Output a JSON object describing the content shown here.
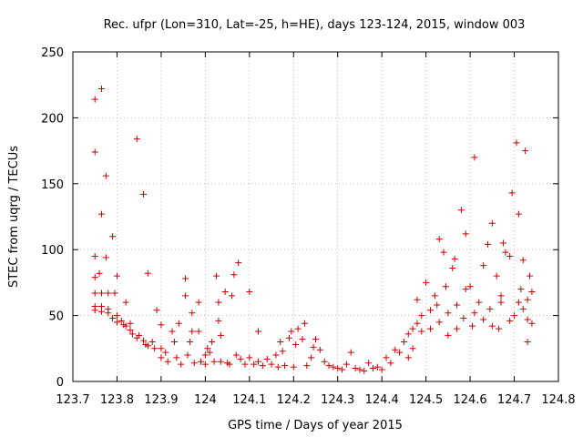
{
  "chart_data": {
    "type": "scatter",
    "title": "Rec. ufpr (Lon=310, Lat=-25, h=HE), days 123-124, 2015, window 003",
    "xlabel": "GPS time / Days of year 2015",
    "ylabel": "STEC from uqrg / TECUs",
    "xlim": [
      123.7,
      124.8
    ],
    "ylim": [
      0,
      250
    ],
    "xticks": [
      "123.7",
      "123.8",
      "123.9",
      "124",
      "124.1",
      "124.2",
      "124.3",
      "124.4",
      "124.5",
      "124.6",
      "124.7",
      "124.8"
    ],
    "yticks": [
      "0",
      "50",
      "100",
      "150",
      "200",
      "250"
    ],
    "grid": true,
    "marker": "+",
    "color": "#cc0000",
    "points": [
      [
        123.75,
        214
      ],
      [
        123.765,
        222
      ],
      [
        123.75,
        174
      ],
      [
        123.765,
        127
      ],
      [
        123.775,
        156
      ],
      [
        123.79,
        110
      ],
      [
        123.845,
        184
      ],
      [
        123.86,
        142
      ],
      [
        123.75,
        95
      ],
      [
        123.775,
        94
      ],
      [
        123.76,
        82
      ],
      [
        123.75,
        79
      ],
      [
        123.8,
        80
      ],
      [
        123.87,
        82
      ],
      [
        123.75,
        67
      ],
      [
        123.765,
        67
      ],
      [
        123.78,
        67
      ],
      [
        123.795,
        67
      ],
      [
        123.75,
        57
      ],
      [
        123.765,
        57
      ],
      [
        123.78,
        55
      ],
      [
        123.82,
        60
      ],
      [
        123.75,
        54
      ],
      [
        123.765,
        53
      ],
      [
        123.78,
        52
      ],
      [
        123.79,
        48
      ],
      [
        123.8,
        50
      ],
      [
        123.8,
        45
      ],
      [
        123.81,
        46
      ],
      [
        123.815,
        43
      ],
      [
        123.82,
        42
      ],
      [
        123.83,
        44
      ],
      [
        123.83,
        39
      ],
      [
        123.835,
        36
      ],
      [
        123.845,
        33
      ],
      [
        123.85,
        35
      ],
      [
        123.86,
        31
      ],
      [
        123.865,
        28
      ],
      [
        123.87,
        27
      ],
      [
        123.88,
        30
      ],
      [
        123.885,
        25
      ],
      [
        123.89,
        54
      ],
      [
        123.9,
        43
      ],
      [
        123.9,
        25
      ],
      [
        123.9,
        18
      ],
      [
        123.91,
        22
      ],
      [
        123.915,
        15
      ],
      [
        123.925,
        38
      ],
      [
        123.93,
        30
      ],
      [
        123.935,
        18
      ],
      [
        123.94,
        44
      ],
      [
        123.945,
        13
      ],
      [
        123.955,
        65
      ],
      [
        123.955,
        78
      ],
      [
        123.96,
        20
      ],
      [
        123.965,
        30
      ],
      [
        123.97,
        52
      ],
      [
        123.97,
        38
      ],
      [
        123.975,
        14
      ],
      [
        123.985,
        60
      ],
      [
        123.985,
        38
      ],
      [
        123.99,
        15
      ],
      [
        124.0,
        20
      ],
      [
        124.0,
        13
      ],
      [
        124.005,
        25
      ],
      [
        124.01,
        22
      ],
      [
        124.015,
        30
      ],
      [
        124.02,
        15
      ],
      [
        124.025,
        80
      ],
      [
        124.03,
        60
      ],
      [
        124.03,
        46
      ],
      [
        124.035,
        35
      ],
      [
        124.035,
        15
      ],
      [
        124.045,
        68
      ],
      [
        124.05,
        14
      ],
      [
        124.055,
        13
      ],
      [
        124.06,
        65
      ],
      [
        124.065,
        81
      ],
      [
        124.07,
        20
      ],
      [
        124.075,
        90
      ],
      [
        124.08,
        17
      ],
      [
        124.09,
        13
      ],
      [
        124.1,
        68
      ],
      [
        124.1,
        18
      ],
      [
        124.11,
        13
      ],
      [
        124.12,
        38
      ],
      [
        124.12,
        15
      ],
      [
        124.13,
        12
      ],
      [
        124.14,
        17
      ],
      [
        124.15,
        13
      ],
      [
        124.16,
        20
      ],
      [
        124.165,
        11
      ],
      [
        124.17,
        30
      ],
      [
        124.175,
        23
      ],
      [
        124.18,
        12
      ],
      [
        124.19,
        33
      ],
      [
        124.195,
        38
      ],
      [
        124.2,
        11
      ],
      [
        124.205,
        28
      ],
      [
        124.21,
        40
      ],
      [
        124.22,
        32
      ],
      [
        124.225,
        44
      ],
      [
        124.23,
        12
      ],
      [
        124.24,
        18
      ],
      [
        124.245,
        26
      ],
      [
        124.25,
        32
      ],
      [
        124.26,
        24
      ],
      [
        124.27,
        15
      ],
      [
        124.28,
        12
      ],
      [
        124.29,
        11
      ],
      [
        124.3,
        10
      ],
      [
        124.31,
        9
      ],
      [
        124.32,
        13
      ],
      [
        124.33,
        22
      ],
      [
        124.34,
        10
      ],
      [
        124.35,
        9
      ],
      [
        124.36,
        8
      ],
      [
        124.37,
        14
      ],
      [
        124.38,
        10
      ],
      [
        124.39,
        11
      ],
      [
        124.4,
        9
      ],
      [
        124.41,
        18
      ],
      [
        124.42,
        14
      ],
      [
        124.43,
        24
      ],
      [
        124.44,
        22
      ],
      [
        124.45,
        30
      ],
      [
        124.46,
        36
      ],
      [
        124.47,
        40
      ],
      [
        124.48,
        62
      ],
      [
        124.49,
        50
      ],
      [
        124.5,
        75
      ],
      [
        124.51,
        40
      ],
      [
        124.52,
        65
      ],
      [
        124.525,
        58
      ],
      [
        124.53,
        108
      ],
      [
        124.54,
        98
      ],
      [
        124.545,
        72
      ],
      [
        124.55,
        35
      ],
      [
        124.56,
        86
      ],
      [
        124.565,
        93
      ],
      [
        124.57,
        58
      ],
      [
        124.58,
        130
      ],
      [
        124.585,
        48
      ],
      [
        124.59,
        112
      ],
      [
        124.6,
        72
      ],
      [
        124.605,
        42
      ],
      [
        124.61,
        170
      ],
      [
        124.62,
        60
      ],
      [
        124.63,
        88
      ],
      [
        124.64,
        104
      ],
      [
        124.645,
        55
      ],
      [
        124.65,
        120
      ],
      [
        124.66,
        80
      ],
      [
        124.665,
        40
      ],
      [
        124.67,
        60
      ],
      [
        124.675,
        105
      ],
      [
        124.68,
        98
      ],
      [
        124.69,
        95
      ],
      [
        124.695,
        143
      ],
      [
        124.7,
        50
      ],
      [
        124.705,
        181
      ],
      [
        124.71,
        127
      ],
      [
        124.715,
        70
      ],
      [
        124.72,
        92
      ],
      [
        124.725,
        175
      ],
      [
        124.73,
        47
      ],
      [
        124.735,
        80
      ],
      [
        124.74,
        68
      ],
      [
        124.74,
        44
      ],
      [
        124.73,
        30
      ],
      [
        124.72,
        55
      ],
      [
        124.46,
        18
      ],
      [
        124.47,
        25
      ],
      [
        124.48,
        44
      ],
      [
        124.49,
        38
      ],
      [
        124.51,
        54
      ],
      [
        124.53,
        45
      ],
      [
        124.55,
        52
      ],
      [
        124.57,
        40
      ],
      [
        124.59,
        70
      ],
      [
        124.61,
        52
      ],
      [
        124.63,
        47
      ],
      [
        124.65,
        42
      ],
      [
        124.67,
        65
      ],
      [
        124.69,
        46
      ],
      [
        124.71,
        60
      ],
      [
        124.73,
        62
      ]
    ]
  }
}
